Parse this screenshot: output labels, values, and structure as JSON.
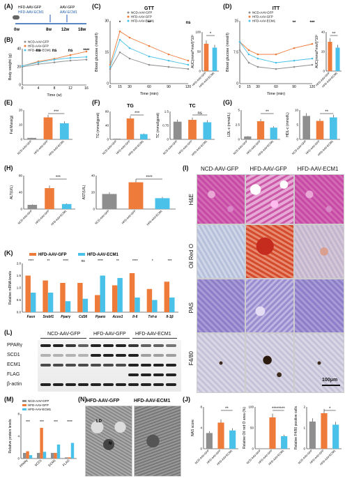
{
  "panel_labels": [
    "(A)",
    "(B)",
    "(C)",
    "(D)",
    "(E)",
    "(F)",
    "(G)",
    "(H)",
    "(I)",
    "(J)",
    "(K)",
    "(L)",
    "(M)",
    "(N)"
  ],
  "colors": {
    "ncd": "#8e8e8e",
    "hfd_gfp": "#ef7b3a",
    "hfd_ecm1": "#49c1e8"
  },
  "groups": {
    "ncd": "NCD-AAV-GFP",
    "hfd_gfp": "HFD-AAV-GFP",
    "hfd_ecm1": "HFD-AAV-ECM1"
  },
  "timeline": {
    "labels": [
      "HFD-AAV-GFP",
      "HFD-AAV-ECM1",
      "AAV-GFP",
      "AAV-ECM1"
    ],
    "ticks": [
      "0w",
      "8w",
      "12w",
      "18w"
    ]
  },
  "B": {
    "ylabel": "Body weight (g)",
    "xlabel": "Time (w)",
    "xticks": [
      "0",
      "4",
      "8",
      "12",
      "16"
    ],
    "sig": [
      "ns",
      "ns",
      "ns",
      "****"
    ]
  },
  "C": {
    "title": "GTT",
    "ylabel": "Blood glucose (mmol/l)",
    "xlabel": "Time (min)",
    "xticks": [
      "0",
      "15",
      "30",
      "60",
      "90",
      "120"
    ],
    "auc_label": "AUC(mmol*min/l)*10³",
    "sig": [
      "*",
      "**",
      "ns"
    ]
  },
  "D": {
    "title": "ITT",
    "ylabel": "Blood glucose (mmol/l)",
    "xlabel": "Time (min)",
    "xticks": [
      "0",
      "15",
      "30",
      "60",
      "90",
      "120"
    ],
    "auc_label": "AUC(mmol*min/l)*10³",
    "sig": [
      "**",
      "***"
    ]
  },
  "E": {
    "ylabel": "Fat Mass(g)",
    "sig": "***"
  },
  "F1": {
    "title": "TG",
    "ylabel": "TG (mmol/gprot)",
    "sig": "***"
  },
  "F2": {
    "title": "TC",
    "ylabel": "TC (mmol/gprot)",
    "sig": "ns"
  },
  "G1": {
    "ylabel": "LDL-c (mmol/L)",
    "sig": "**"
  },
  "G2": {
    "ylabel": "HDL-c (mmol/L)",
    "sig": "**"
  },
  "H1": {
    "ylabel": "ALT(U/L)",
    "sig": "***"
  },
  "H2": {
    "ylabel": "AST(U/L)",
    "sig": "****"
  },
  "I": {
    "cols": [
      "NCD-AAV-GFP",
      "HFD-AAV-GFP",
      "HFD-AAV-ECM1"
    ],
    "rows": [
      "H&E",
      "Oil Red O",
      "PAS",
      "F4/80"
    ],
    "scale": "100μm"
  },
  "K": {
    "ylabel": "Relative mRNA levels",
    "genes": [
      "Fasn",
      "Srebf1",
      "Pparγ",
      "Cd36",
      "Pparα",
      "Acox1",
      "Il-6",
      "Tnf-α",
      "Il-1β"
    ],
    "sig": [
      "****",
      "**",
      "****",
      "ns",
      "****",
      "**",
      "****",
      "*",
      "***"
    ]
  },
  "L": {
    "cols": [
      "NCD-AAV-GFP",
      "HFD-AAV-GFP",
      "HFD-AAV-ECM1"
    ],
    "rows": [
      "PPARγ",
      "SCD1",
      "ECM1",
      "FLAG",
      "β-actin"
    ]
  },
  "M": {
    "ylabel": "Relative protein levels",
    "cats": [
      "PPARγ",
      "SCD1",
      "ECM1",
      "FLAG"
    ],
    "sig": [
      "***",
      "***",
      "***",
      "****"
    ]
  },
  "N": {
    "cols": [
      "HFD-AAV-GFP",
      "HFD-AAV-ECM1"
    ],
    "labels": [
      "LD",
      "N"
    ]
  },
  "J": {
    "ylabels": [
      "NAS score",
      "Relative Oil red O area (%)",
      "Relative F4/80 positive cells"
    ],
    "sig": [
      [
        "**",
        "**"
      ],
      [
        "********"
      ],
      [
        "*",
        "*"
      ]
    ]
  },
  "chart_data": [
    {
      "panel": "B",
      "type": "line",
      "xlabel": "Time (w)",
      "ylabel": "Body weight (g)",
      "x": [
        0,
        4,
        8,
        12,
        16
      ],
      "ylim": [
        0,
        40
      ],
      "series": [
        {
          "name": "NCD-AAV-GFP",
          "values": [
            20,
            23,
            25,
            27,
            28
          ]
        },
        {
          "name": "HFD-AAV-GFP",
          "values": [
            21,
            26,
            29,
            33,
            37
          ]
        },
        {
          "name": "HFD-AAV-ECM1",
          "values": [
            21,
            25,
            28,
            30,
            31
          ]
        }
      ]
    },
    {
      "panel": "C",
      "type": "line",
      "title": "GTT",
      "xlabel": "Time (min)",
      "ylabel": "Blood glucose (mmol/l)",
      "x": [
        0,
        15,
        30,
        60,
        90,
        120
      ],
      "ylim": [
        0,
        30
      ],
      "series": [
        {
          "name": "NCD-AAV-GFP",
          "values": [
            7,
            15,
            12,
            9,
            8,
            7
          ]
        },
        {
          "name": "HFD-AAV-GFP",
          "values": [
            9,
            25,
            22,
            18,
            14,
            11
          ]
        },
        {
          "name": "HFD-AAV-ECM1",
          "values": [
            8,
            21,
            17,
            13,
            11,
            9
          ]
        }
      ]
    },
    {
      "panel": "C-AUC",
      "type": "bar",
      "ylim": [
        0,
        100
      ],
      "categories": [
        "HFD-AAV-GFP",
        "HFD-AAV-ECM1"
      ],
      "values": [
        70,
        60
      ]
    },
    {
      "panel": "D",
      "type": "line",
      "title": "ITT",
      "xlabel": "Time (min)",
      "ylabel": "Blood glucose (mmol/l)",
      "x": [
        0,
        15,
        30,
        60,
        90,
        120
      ],
      "ylim": [
        0,
        15
      ],
      "series": [
        {
          "name": "NCD-AAV-GFP",
          "values": [
            8,
            5,
            4,
            3.5,
            4,
            4.5
          ]
        },
        {
          "name": "HFD-AAV-GFP",
          "values": [
            10,
            8,
            7,
            7,
            8.5,
            9.5
          ]
        },
        {
          "name": "HFD-AAV-ECM1",
          "values": [
            10,
            7,
            6,
            5,
            5.5,
            6
          ]
        }
      ]
    },
    {
      "panel": "D-AUC",
      "type": "bar",
      "ylim": [
        0,
        40
      ],
      "categories": [
        "HFD-AAV-GFP",
        "HFD-AAV-ECM1"
      ],
      "values": [
        30,
        24
      ]
    },
    {
      "panel": "E",
      "type": "bar",
      "ylabel": "Fat Mass(g)",
      "ylim": [
        0,
        20
      ],
      "categories": [
        "NCD-AAV-GFP",
        "HFD-AAV-GFP",
        "HFD-AAV-ECM1"
      ],
      "values": [
        1,
        15,
        11
      ]
    },
    {
      "panel": "F1",
      "type": "bar",
      "title": "TG",
      "ylim": [
        0,
        80
      ],
      "categories": [
        "NCD-AAV-GFP",
        "HFD-AAV-GFP",
        "HFD-AAV-ECM1"
      ],
      "values": [
        2,
        60,
        15
      ]
    },
    {
      "panel": "F2",
      "type": "bar",
      "title": "TC",
      "ylim": [
        0,
        1.5
      ],
      "categories": [
        "NCD-AAV-GFP",
        "HFD-AAV-GFP",
        "HFD-AAV-ECM1"
      ],
      "values": [
        0.95,
        1.05,
        0.92
      ]
    },
    {
      "panel": "G1",
      "type": "bar",
      "ylim": [
        0,
        5
      ],
      "categories": [
        "NCD-AAV-GFP",
        "HFD-AAV-GFP",
        "HFD-AAV-ECM1"
      ],
      "values": [
        0.5,
        3.1,
        2.0
      ]
    },
    {
      "panel": "G2",
      "type": "bar",
      "ylim": [
        0,
        10
      ],
      "categories": [
        "NCD-AAV-GFP",
        "HFD-AAV-GFP",
        "HFD-AAV-ECM1"
      ],
      "values": [
        8,
        6.3,
        7.5
      ]
    },
    {
      "panel": "H1",
      "type": "bar",
      "ylim": [
        0,
        80
      ],
      "categories": [
        "NCD-AAV-GFP",
        "HFD-AAV-GFP",
        "HFD-AAV-ECM1"
      ],
      "values": [
        10,
        50,
        12
      ]
    },
    {
      "panel": "H2",
      "type": "bar",
      "ylim": [
        0,
        40
      ],
      "categories": [
        "NCD-AAV-GFP",
        "HFD-AAV-GFP",
        "HFD-AAV-ECM1"
      ],
      "values": [
        18,
        32,
        13
      ]
    },
    {
      "panel": "K",
      "type": "bar",
      "ylim": [
        0,
        2.0
      ],
      "categories": [
        "Fasn",
        "Srebf1",
        "Pparγ",
        "Cd36",
        "Pparα",
        "Acox1",
        "Il-6",
        "Tnf-α",
        "Il-1β"
      ],
      "series": [
        {
          "name": "HFD-AAV-GFP",
          "values": [
            1.5,
            1.3,
            1.2,
            1.2,
            0.7,
            1.1,
            1.6,
            0.95,
            1.25
          ]
        },
        {
          "name": "HFD-AAV-ECM1",
          "values": [
            0.8,
            0.8,
            0.45,
            0.55,
            1.5,
            1.4,
            0.6,
            0.5,
            0.6
          ]
        }
      ]
    },
    {
      "panel": "M",
      "type": "bar",
      "ylim": [
        0,
        8
      ],
      "categories": [
        "PPARγ",
        "SCD1",
        "ECM1",
        "FLAG"
      ],
      "series": [
        {
          "name": "NCD-AAV-GFP",
          "values": [
            1,
            1,
            1,
            0.2
          ]
        },
        {
          "name": "HFD-AAV-GFP",
          "values": [
            1.3,
            5.5,
            1,
            0.2
          ]
        },
        {
          "name": "HFD-AAV-ECM1",
          "values": [
            0.6,
            1.2,
            2.5,
            2.8
          ]
        }
      ]
    },
    {
      "panel": "J1",
      "type": "bar",
      "ylabel": "NAS score",
      "ylim": [
        0,
        8
      ],
      "categories": [
        "NCD-AAV-GFP",
        "HFD-AAV-GFP",
        "HFD-AAV-ECM1"
      ],
      "values": [
        3,
        5,
        3.5
      ]
    },
    {
      "panel": "J2",
      "type": "bar",
      "ylabel": "Relative Oil red O area (%)",
      "ylim": [
        0,
        100
      ],
      "categories": [
        "NCD-AAV-GFP",
        "HFD-AAV-GFP",
        "HFD-AAV-ECM1"
      ],
      "values": [
        0,
        75,
        30
      ]
    },
    {
      "panel": "J3",
      "type": "bar",
      "ylabel": "Relative F4/80 positive cells",
      "ylim": [
        0,
        2
      ],
      "categories": [
        "NCD-AAV-GFP",
        "HFD-AAV-GFP",
        "HFD-AAV-ECM1"
      ],
      "values": [
        1.3,
        1.7,
        1.15
      ]
    }
  ]
}
